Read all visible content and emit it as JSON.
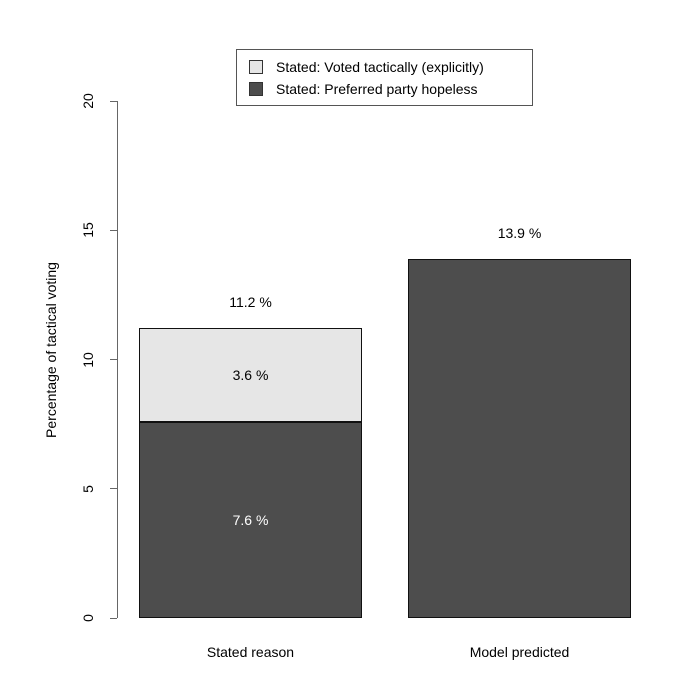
{
  "chart_data": {
    "type": "bar",
    "stacked": true,
    "title": "",
    "xlabel": "",
    "ylabel": "Percentage of tactical voting",
    "ylim": [
      0,
      20
    ],
    "yticks": [
      "0",
      "5",
      "10",
      "15",
      "20"
    ],
    "grid": false,
    "legend_position": "top-center",
    "categories": [
      "Stated reason",
      "Model predicted"
    ],
    "series": [
      {
        "name": "Stated: Preferred party hopeless",
        "color": "#4d4d4d",
        "values": [
          7.6,
          13.9
        ]
      },
      {
        "name": "Stated: Voted tactically (explicitly)",
        "color": "#e6e6e6",
        "values": [
          3.6,
          0
        ]
      }
    ],
    "segment_labels": [
      [
        "7.6 %",
        "3.6 %"
      ],
      [
        null,
        null
      ]
    ],
    "segment_label_colors": [
      [
        "#ffffff",
        "#000000"
      ],
      [
        null,
        null
      ]
    ],
    "total_labels": [
      "11.2 %",
      "13.9 %"
    ],
    "legend": [
      {
        "label": "Stated: Voted tactically (explicitly)",
        "color": "#e6e6e6"
      },
      {
        "label": "Stated: Preferred party hopeless",
        "color": "#4d4d4d"
      }
    ]
  },
  "colors": {
    "axis": "#666666",
    "bar_border": "#111111",
    "text": "#000000"
  }
}
